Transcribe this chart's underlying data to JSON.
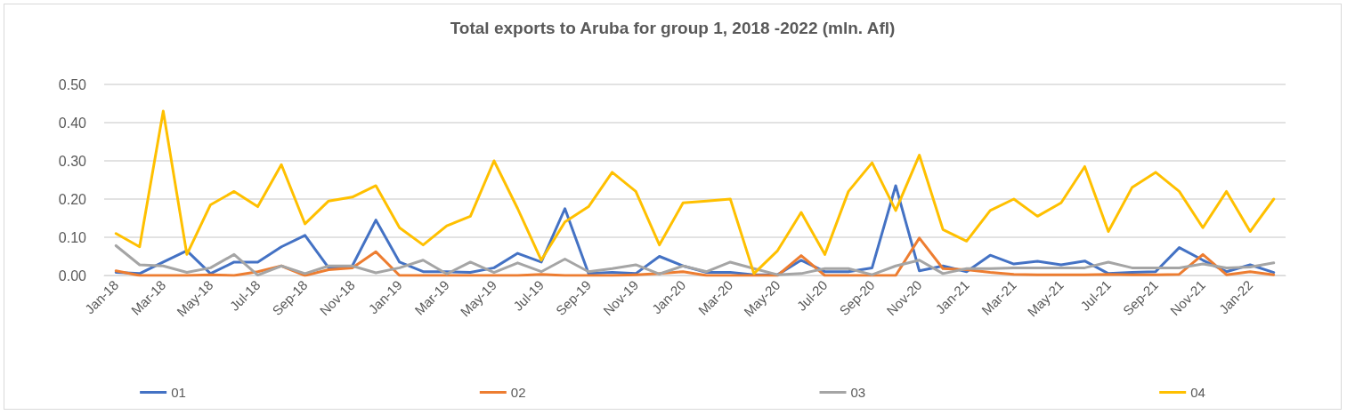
{
  "chart_data": {
    "type": "line",
    "title": "Total exports to Aruba for group 1, 2018 -2022 (mln. Afl)",
    "categories": [
      "Jan-18",
      null,
      "Mar-18",
      null,
      "May-18",
      null,
      "Jul-18",
      null,
      "Sep-18",
      null,
      "Nov-18",
      null,
      "Jan-19",
      null,
      "Mar-19",
      null,
      "May-19",
      null,
      "Jul-19",
      null,
      "Sep-19",
      null,
      "Nov-19",
      null,
      "Jan-20",
      null,
      "Mar-20",
      null,
      "May-20",
      null,
      "Jul-20",
      null,
      "Sep-20",
      null,
      "Nov-20",
      null,
      "Jan-21",
      null,
      "Mar-21",
      null,
      "May-21",
      null,
      "Jul-21",
      null,
      "Sep-21",
      null,
      "Nov-21",
      null,
      "Jan-22",
      null
    ],
    "series": [
      {
        "name": "01",
        "color": "#4472c4",
        "values": [
          0.008,
          0.005,
          0.035,
          0.065,
          0.005,
          0.035,
          0.035,
          0.075,
          0.105,
          0.02,
          0.025,
          0.145,
          0.035,
          0.01,
          0.01,
          0.008,
          0.02,
          0.058,
          0.035,
          0.175,
          0.005,
          0.008,
          0.005,
          0.05,
          0.025,
          0.008,
          0.008,
          0.002,
          0.002,
          0.04,
          0.01,
          0.01,
          0.02,
          0.235,
          0.012,
          0.025,
          0.01,
          0.053,
          0.03,
          0.037,
          0.028,
          0.038,
          0.005,
          0.008,
          0.01,
          0.073,
          0.04,
          0.01,
          0.028,
          0.008
        ]
      },
      {
        "name": "02",
        "color": "#ed7d31",
        "values": [
          0.012,
          0,
          0,
          0,
          0.002,
          0,
          0.01,
          0.025,
          0,
          0.015,
          0.02,
          0.062,
          0,
          0,
          0,
          0,
          0,
          0,
          0.003,
          0,
          0,
          0,
          0.002,
          0.005,
          0.01,
          0,
          0,
          0,
          0,
          0.052,
          0,
          0,
          0,
          0,
          0.098,
          0.018,
          0.015,
          0.008,
          0.003,
          0.002,
          0.002,
          0.002,
          0.003,
          0.002,
          0.002,
          0.003,
          0.055,
          0.002,
          0.01,
          0.002
        ]
      },
      {
        "name": "03",
        "color": "#a5a5a5",
        "values": [
          0.078,
          0.028,
          0.025,
          0.008,
          0.02,
          0.055,
          0.001,
          0.025,
          0.005,
          0.025,
          0.025,
          0.007,
          0.02,
          0.04,
          0.004,
          0.035,
          0.008,
          0.033,
          0.01,
          0.043,
          0.01,
          0.018,
          0.028,
          0.004,
          0.025,
          0.01,
          0.035,
          0.018,
          0.002,
          0.005,
          0.018,
          0.018,
          0.002,
          0.025,
          0.04,
          0.005,
          0.018,
          0.018,
          0.02,
          0.02,
          0.02,
          0.02,
          0.035,
          0.02,
          0.02,
          0.02,
          0.03,
          0.02,
          0.022,
          0.033
        ]
      },
      {
        "name": "04",
        "color": "#ffc000",
        "values": [
          0.11,
          0.075,
          0.43,
          0.055,
          0.185,
          0.22,
          0.18,
          0.29,
          0.135,
          0.195,
          0.205,
          0.235,
          0.125,
          0.08,
          0.13,
          0.155,
          0.3,
          0.175,
          0.04,
          0.14,
          0.18,
          0.27,
          0.22,
          0.08,
          0.19,
          0.195,
          0.2,
          0.005,
          0.065,
          0.165,
          0.055,
          0.22,
          0.295,
          0.17,
          0.315,
          0.12,
          0.09,
          0.17,
          0.2,
          0.155,
          0.19,
          0.285,
          0.115,
          0.23,
          0.27,
          0.22,
          0.125,
          0.22,
          0.115,
          0.2
        ]
      }
    ],
    "ylim": [
      0,
      0.5
    ],
    "yticks": [
      {
        "value": 0,
        "label": "0.00"
      },
      {
        "value": 0.1,
        "label": "0.10"
      },
      {
        "value": 0.2,
        "label": "0.20"
      },
      {
        "value": 0.3,
        "label": "0.30"
      },
      {
        "value": 0.4,
        "label": "0.40"
      },
      {
        "value": 0.5,
        "label": "0.50"
      }
    ],
    "grid": "y",
    "legend": "bottom",
    "marker": "none",
    "line_style": "solid"
  }
}
